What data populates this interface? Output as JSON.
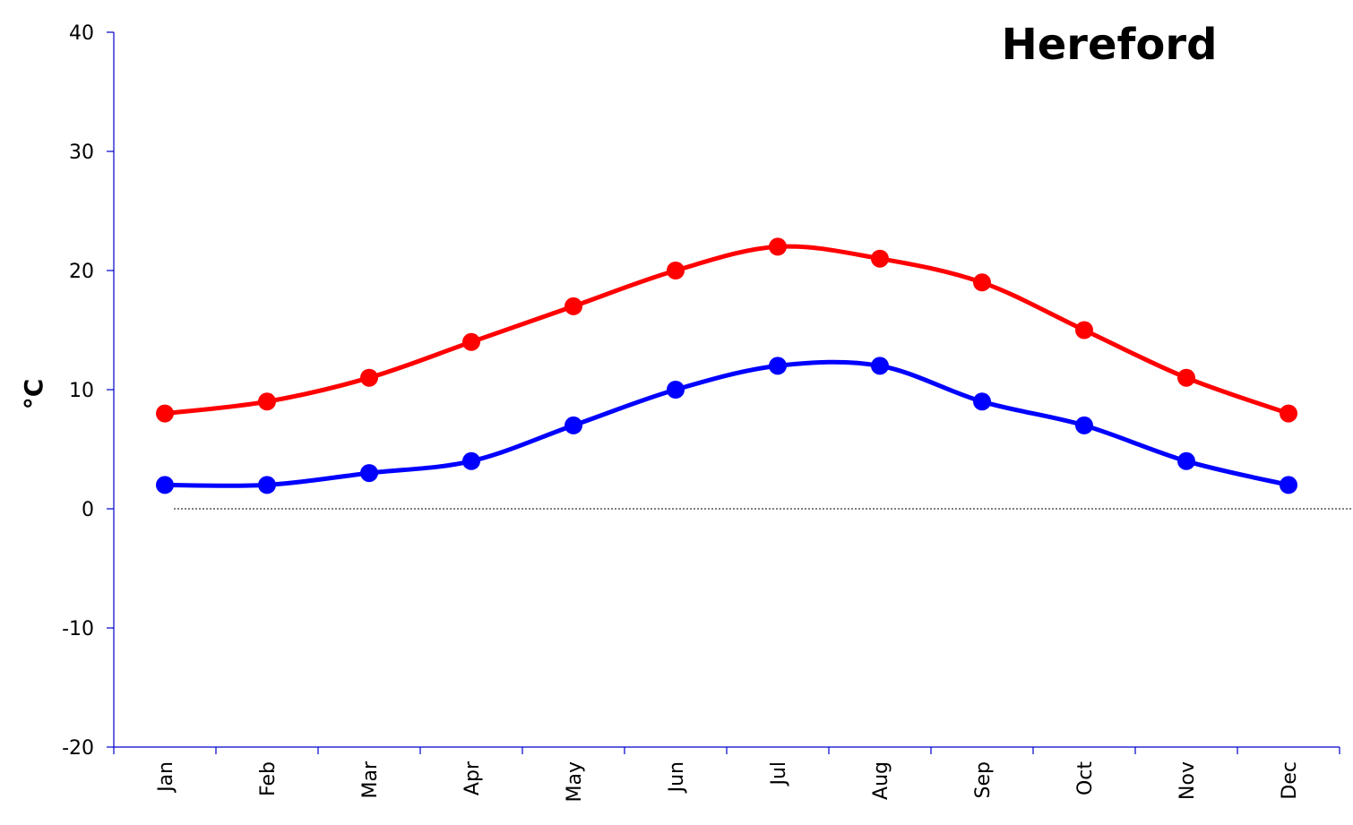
{
  "chart_data": {
    "type": "line",
    "title": "Hereford",
    "xlabel": "",
    "ylabel": "°C",
    "ylim": [
      -20,
      40
    ],
    "yticks": [
      -20,
      -10,
      0,
      10,
      20,
      30,
      40
    ],
    "categories": [
      "Jan",
      "Feb",
      "Mar",
      "Apr",
      "May",
      "Jun",
      "Jul",
      "Aug",
      "Sep",
      "Oct",
      "Nov",
      "Dec"
    ],
    "series": [
      {
        "color": "#ff0000",
        "values": [
          8,
          9,
          11,
          14,
          17,
          20,
          22,
          21,
          19,
          15,
          11,
          8
        ]
      },
      {
        "color": "#0000ff",
        "values": [
          2,
          2,
          3,
          4,
          7,
          10,
          12,
          12,
          9,
          7,
          4,
          2
        ]
      }
    ],
    "reference_line": {
      "y": 0,
      "style": "dotted"
    },
    "grid": false,
    "legend": "none"
  }
}
